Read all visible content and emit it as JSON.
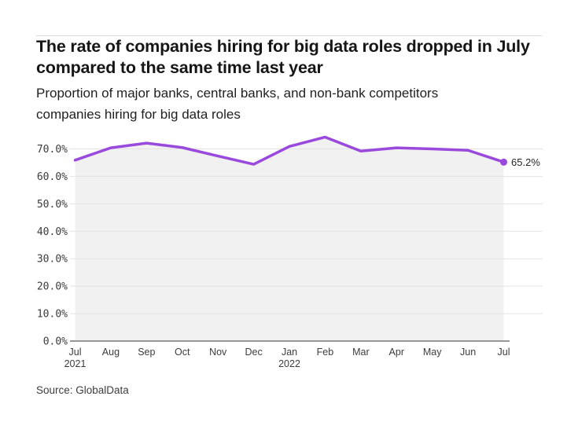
{
  "header": {
    "title": "The rate of companies hiring for big data roles dropped in July compared to the same time last year",
    "subtitle": "Proportion of major banks, central banks, and non-bank competitors companies hiring for big data roles"
  },
  "footer": {
    "source": "Source: GlobalData"
  },
  "chart_data": {
    "type": "area",
    "title": "The rate of companies hiring for big data roles dropped in July compared to the same time last year",
    "subtitle": "Proportion of major banks, central banks, and non-bank competitors companies hiring for big data roles",
    "categories": [
      "Jul",
      "Aug",
      "Sep",
      "Oct",
      "Nov",
      "Dec",
      "Jan",
      "Feb",
      "Mar",
      "Apr",
      "May",
      "Jun",
      "Jul"
    ],
    "year_markers": [
      {
        "index": 0,
        "label": "2021"
      },
      {
        "index": 6,
        "label": "2022"
      }
    ],
    "series": [
      {
        "name": "Proportion of companies hiring for big data roles",
        "values": [
          65.9,
          70.4,
          72.1,
          70.5,
          67.4,
          64.4,
          70.9,
          74.3,
          69.2,
          70.4,
          70.0,
          69.5,
          65.2
        ]
      }
    ],
    "end_label": "65.2%",
    "yticks": [
      0,
      10,
      20,
      30,
      40,
      50,
      60,
      70
    ],
    "ytick_labels": [
      "0.0%",
      "10.0%",
      "20.0%",
      "30.0%",
      "40.0%",
      "50.0%",
      "60.0%",
      "70.0%"
    ],
    "ylim": [
      0,
      75.5
    ],
    "grid": "horizontal",
    "legend": "none",
    "xlabel": "",
    "ylabel": "",
    "line_color": "#9a49dd",
    "area_color": "#f1f1f1",
    "grid_color": "#e3e3e3",
    "axis_color": "#757575"
  }
}
